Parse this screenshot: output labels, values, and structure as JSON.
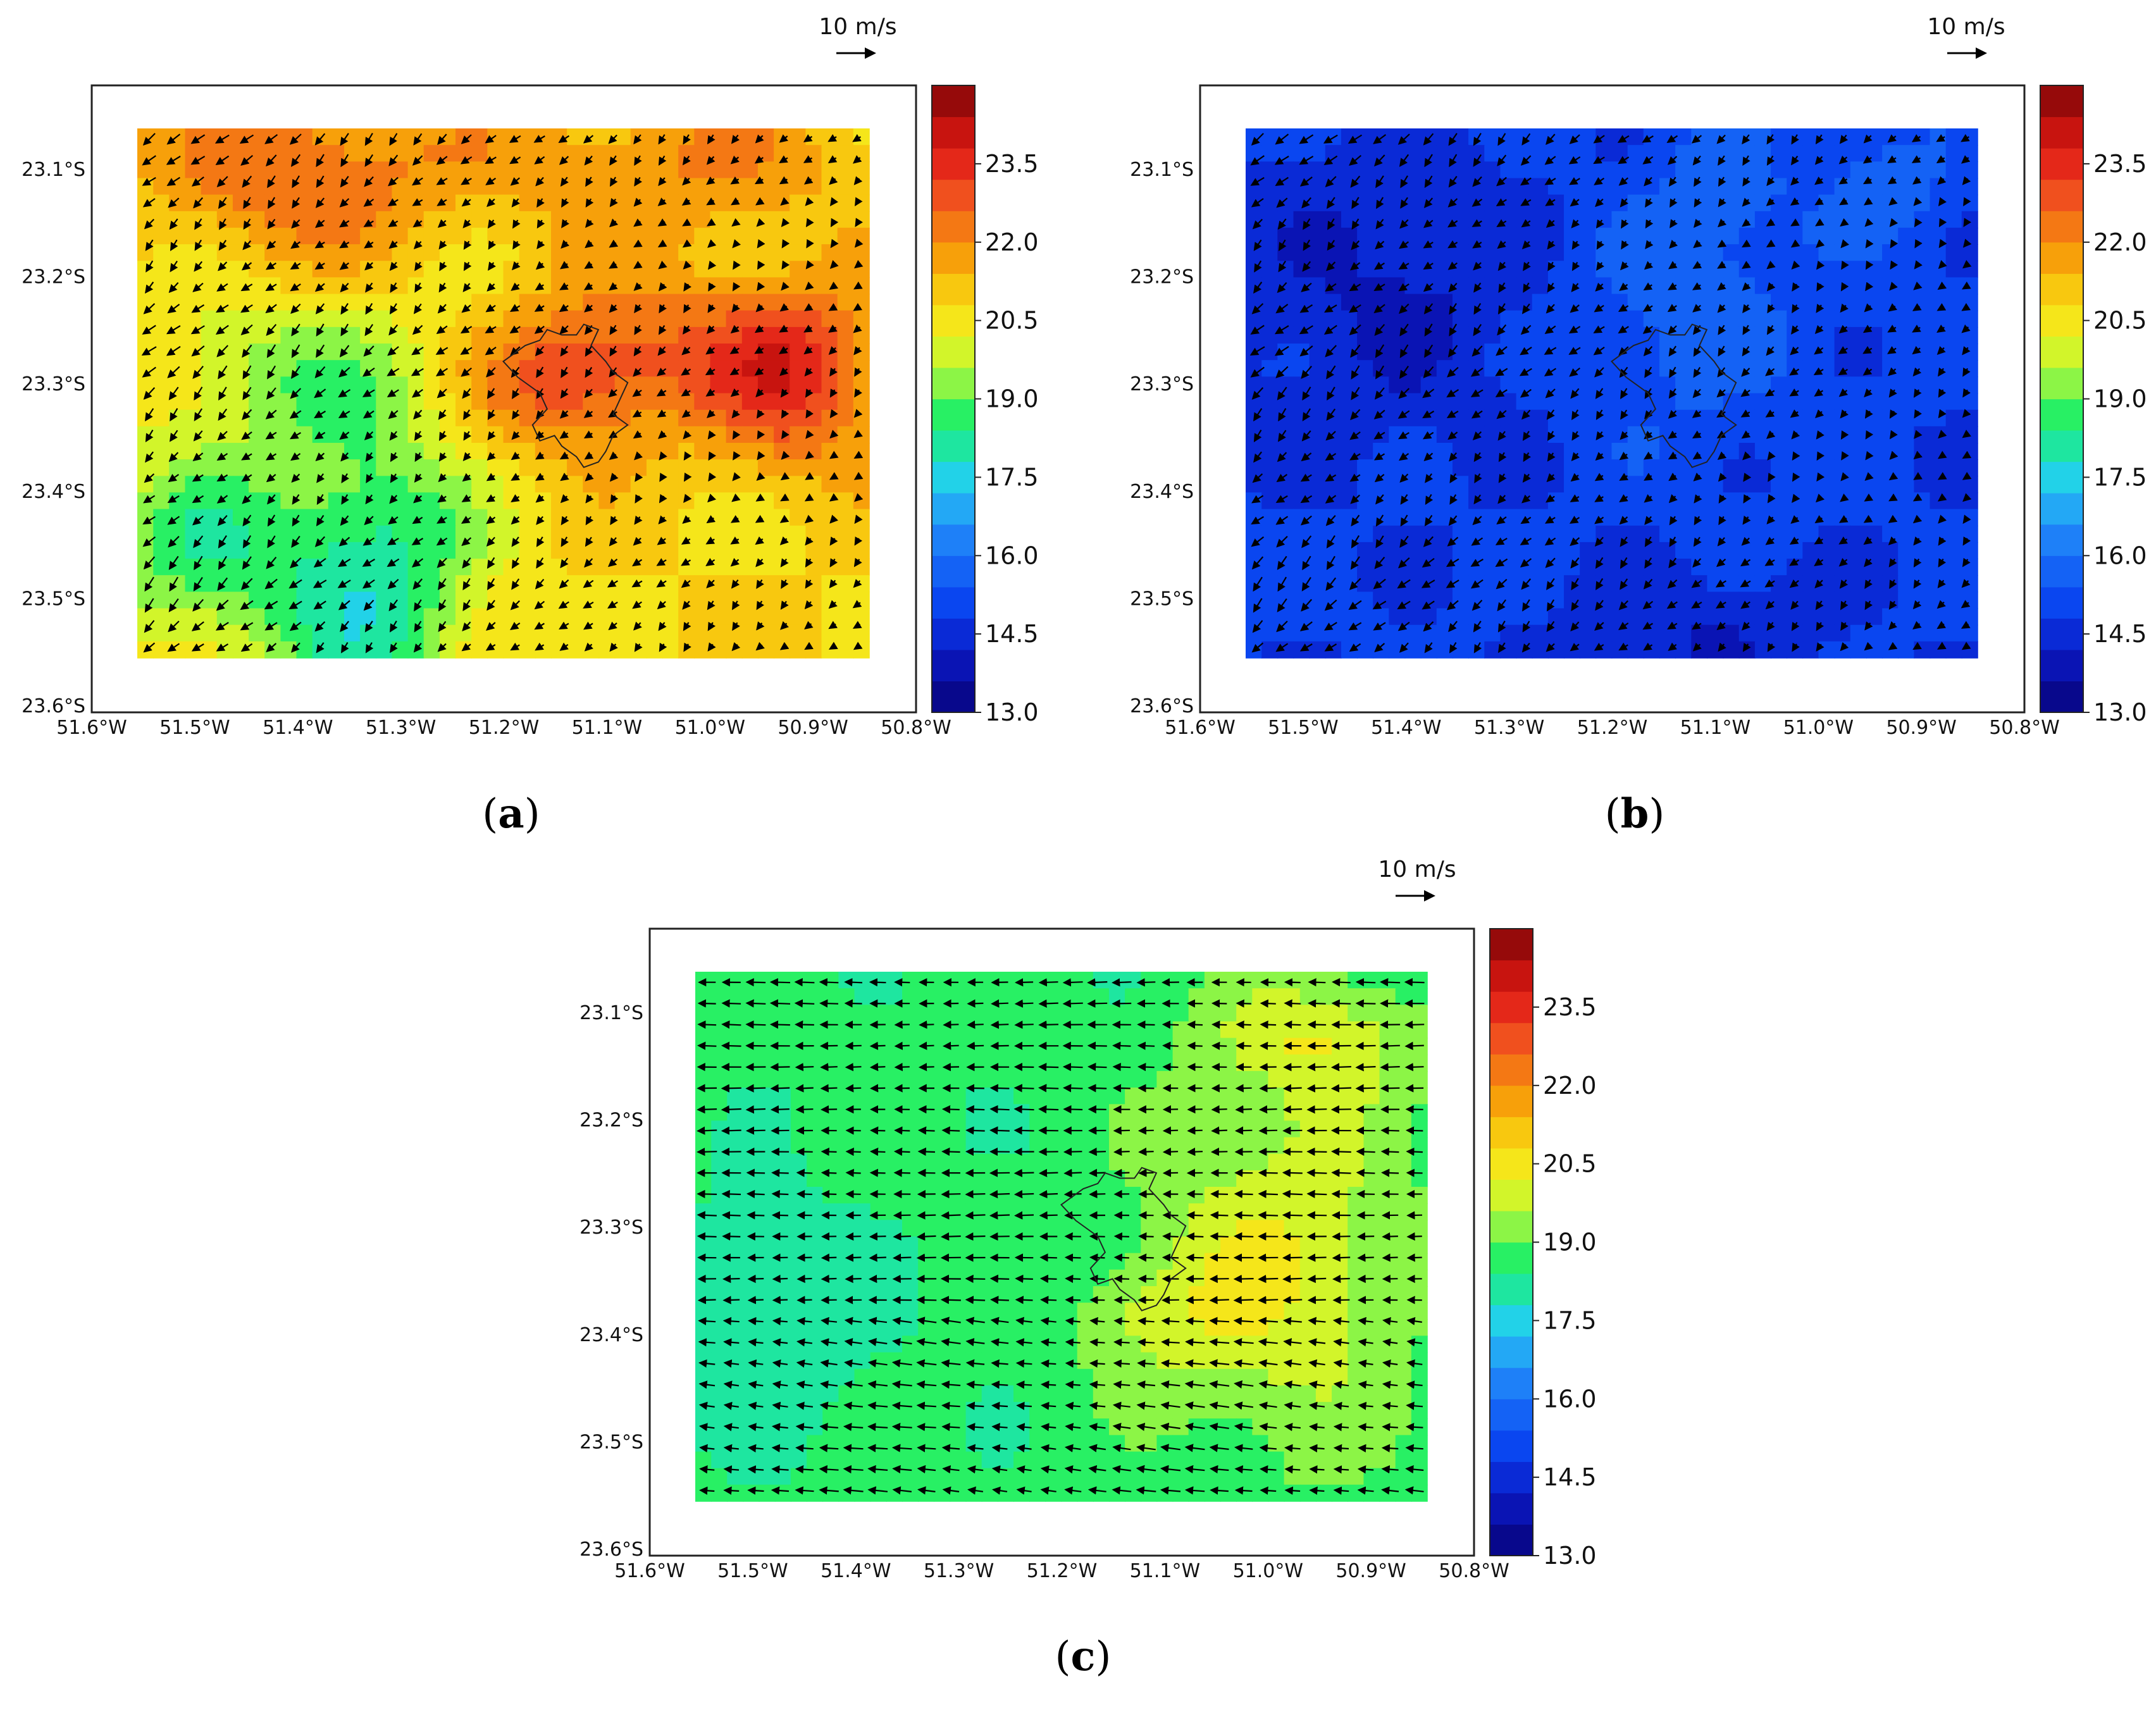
{
  "figure": {
    "colorbar": {
      "colors": [
        "#08088c",
        "#0a14b4",
        "#0a2ad6",
        "#0a46f0",
        "#1462f5",
        "#1e80f8",
        "#23a8f5",
        "#22d2e8",
        "#1ee6a0",
        "#28f064",
        "#8cf546",
        "#d2f52a",
        "#f5e61a",
        "#f8c80f",
        "#f7a00a",
        "#f47814",
        "#f0501e",
        "#e42819",
        "#c8140f",
        "#960a0a"
      ],
      "vmin": 13.0,
      "vmax": 25.0,
      "tick_labels": [
        "23.5",
        "22.0",
        "20.5",
        "19.0",
        "17.5",
        "16.0",
        "14.5",
        "13.0"
      ]
    },
    "axes": {
      "x_ticks": [
        "51.6°W",
        "51.5°W",
        "51.4°W",
        "51.3°W",
        "51.2°W",
        "51.1°W",
        "51.0°W",
        "50.9°W",
        "50.8°W"
      ],
      "y_ticks": [
        "23.1°S",
        "23.2°S",
        "23.3°S",
        "23.4°S",
        "23.5°S",
        "23.6°S"
      ]
    },
    "reference_vector_label": "10 m/s",
    "panels": [
      {
        "label_open": "(",
        "letter": "a",
        "label_close": ")",
        "scenario": "mixed",
        "base_temperature": 20.8,
        "wind_direction": "southwest"
      },
      {
        "label_open": "(",
        "letter": "b",
        "label_close": ")",
        "scenario": "cool",
        "base_temperature": 14.9,
        "wind_direction": "southwest"
      },
      {
        "label_open": "(",
        "letter": "c",
        "label_close": ")",
        "scenario": "uniform",
        "base_temperature": 18.6,
        "wind_direction": "west"
      }
    ]
  }
}
